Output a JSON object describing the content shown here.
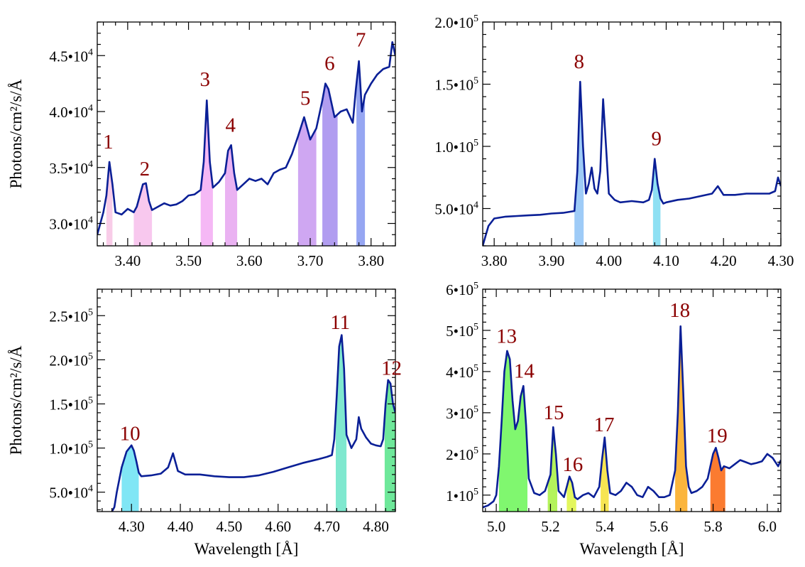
{
  "colors": {
    "spectrum": "#0a1f96",
    "peak_label": "#8b0000",
    "axes": "#000000"
  },
  "chart_data": [
    {
      "type": "line",
      "panel": "top-left",
      "xlim": [
        3.35,
        3.84
      ],
      "ylim": [
        28000,
        48000
      ],
      "xticks": [
        3.4,
        3.5,
        3.6,
        3.7,
        3.8
      ],
      "xtick_labels": [
        "3.40",
        "3.50",
        "3.60",
        "3.70",
        "3.80"
      ],
      "yticks": [
        30000,
        35000,
        40000,
        45000
      ],
      "ytick_labels": [
        [
          "3.0•10",
          "4"
        ],
        [
          "3.5•10",
          "4"
        ],
        [
          "4.0•10",
          "4"
        ],
        [
          "4.5•10",
          "4"
        ]
      ],
      "xlabel": "",
      "ylabel": "Photons/cm²/s/Å",
      "series": [
        {
          "name": "spectrum",
          "x": [
            3.35,
            3.36,
            3.365,
            3.37,
            3.375,
            3.38,
            3.39,
            3.4,
            3.41,
            3.415,
            3.42,
            3.425,
            3.43,
            3.435,
            3.44,
            3.45,
            3.46,
            3.47,
            3.48,
            3.49,
            3.5,
            3.51,
            3.52,
            3.525,
            3.53,
            3.535,
            3.54,
            3.55,
            3.56,
            3.565,
            3.57,
            3.575,
            3.58,
            3.59,
            3.6,
            3.61,
            3.62,
            3.63,
            3.64,
            3.65,
            3.66,
            3.67,
            3.68,
            3.69,
            3.695,
            3.7,
            3.71,
            3.72,
            3.725,
            3.73,
            3.74,
            3.75,
            3.76,
            3.77,
            3.775,
            3.78,
            3.785,
            3.79,
            3.8,
            3.81,
            3.82,
            3.83,
            3.835,
            3.84
          ],
          "y": [
            29000,
            31000,
            32500,
            35500,
            33500,
            31000,
            30800,
            31300,
            31000,
            31500,
            32500,
            33500,
            33600,
            32000,
            31200,
            31500,
            31800,
            31600,
            31700,
            32000,
            32500,
            32600,
            33000,
            35500,
            41000,
            35500,
            33200,
            33700,
            34500,
            36500,
            37000,
            34500,
            33000,
            33500,
            34000,
            33800,
            34000,
            33500,
            34500,
            34800,
            35000,
            36200,
            37800,
            39500,
            38500,
            37500,
            38500,
            41000,
            42500,
            42000,
            39500,
            40000,
            40200,
            39000,
            42000,
            44500,
            40000,
            41500,
            42500,
            43300,
            43800,
            44000,
            46200,
            45000
          ]
        }
      ],
      "shaded_regions": [
        {
          "x": [
            3.365,
            3.375
          ],
          "color": "#f8cce8"
        },
        {
          "x": [
            3.41,
            3.44
          ],
          "color": "#f8c8ee"
        },
        {
          "x": [
            3.52,
            3.54
          ],
          "color": "#f5b8f5"
        },
        {
          "x": [
            3.56,
            3.58
          ],
          "color": "#eab2f2"
        },
        {
          "x": [
            3.68,
            3.71
          ],
          "color": "#cfa7f2"
        },
        {
          "x": [
            3.72,
            3.745
          ],
          "color": "#b19df0"
        },
        {
          "x": [
            3.776,
            3.79
          ],
          "color": "#96a6f2"
        }
      ],
      "annotations": [
        {
          "text": "1",
          "x": 3.368,
          "y": 36700
        },
        {
          "text": "2",
          "x": 3.428,
          "y": 34300
        },
        {
          "text": "3",
          "x": 3.527,
          "y": 42300
        },
        {
          "text": "4",
          "x": 3.569,
          "y": 38200
        },
        {
          "text": "5",
          "x": 3.692,
          "y": 40600
        },
        {
          "text": "6",
          "x": 3.732,
          "y": 43700
        },
        {
          "text": "7",
          "x": 3.783,
          "y": 45800
        }
      ]
    },
    {
      "type": "line",
      "panel": "top-right",
      "xlim": [
        3.78,
        4.3
      ],
      "ylim": [
        20000,
        200000
      ],
      "xticks": [
        3.8,
        3.9,
        4.0,
        4.1,
        4.2,
        4.3
      ],
      "xtick_labels": [
        "3.80",
        "3.90",
        "4.00",
        "4.10",
        "4.20",
        "4.30"
      ],
      "yticks": [
        50000,
        100000,
        150000,
        200000
      ],
      "ytick_labels": [
        [
          "5.0•10",
          "4"
        ],
        [
          "1.0•10",
          "5"
        ],
        [
          "1.5•10",
          "5"
        ],
        [
          "2.0•10",
          "5"
        ]
      ],
      "xlabel": "",
      "ylabel": "",
      "series": [
        {
          "name": "spectrum",
          "x": [
            3.78,
            3.785,
            3.79,
            3.8,
            3.82,
            3.84,
            3.86,
            3.88,
            3.9,
            3.92,
            3.94,
            3.945,
            3.95,
            3.955,
            3.96,
            3.965,
            3.97,
            3.975,
            3.98,
            3.985,
            3.99,
            3.995,
            4.0,
            4.01,
            4.02,
            4.04,
            4.06,
            4.07,
            4.075,
            4.08,
            4.085,
            4.09,
            4.095,
            4.1,
            4.12,
            4.14,
            4.16,
            4.18,
            4.19,
            4.2,
            4.22,
            4.24,
            4.26,
            4.28,
            4.29,
            4.295,
            4.3
          ],
          "y": [
            20000,
            28000,
            36000,
            42000,
            43500,
            44000,
            44500,
            45000,
            46000,
            46500,
            48000,
            80000,
            152000,
            100000,
            62000,
            70000,
            83000,
            66000,
            62000,
            80000,
            138000,
            100000,
            62000,
            57000,
            55000,
            56000,
            55000,
            57000,
            65000,
            90000,
            70000,
            58000,
            54000,
            55000,
            57000,
            58000,
            60000,
            62000,
            68000,
            61000,
            61000,
            62000,
            62000,
            62000,
            64000,
            75000,
            68000
          ]
        }
      ],
      "shaded_regions": [
        {
          "x": [
            3.94,
            3.956
          ],
          "color": "#9ecbf7"
        },
        {
          "x": [
            4.077,
            4.09
          ],
          "color": "#8ee0f3"
        }
      ],
      "annotations": [
        {
          "text": "8",
          "x": 3.948,
          "y": 163000
        },
        {
          "text": "9",
          "x": 4.083,
          "y": 101000
        }
      ]
    },
    {
      "type": "line",
      "panel": "bottom-left",
      "xlim": [
        4.23,
        4.84
      ],
      "ylim": [
        28000,
        280000
      ],
      "xticks": [
        4.3,
        4.4,
        4.5,
        4.6,
        4.7,
        4.8
      ],
      "xtick_labels": [
        "4.30",
        "4.40",
        "4.50",
        "4.60",
        "4.70",
        "4.80"
      ],
      "yticks": [
        50000,
        100000,
        150000,
        200000,
        250000
      ],
      "ytick_labels": [
        [
          "5.0•10",
          "4"
        ],
        [
          "1.0•10",
          "5"
        ],
        [
          "1.5•10",
          "5"
        ],
        [
          "2.0•10",
          "5"
        ],
        [
          "2.5•10",
          "5"
        ]
      ],
      "xlabel": "Wavelength [Å]",
      "ylabel": "Photons/cm²/s/Å",
      "series": [
        {
          "name": "spectrum",
          "x": [
            4.26,
            4.265,
            4.27,
            4.28,
            4.29,
            4.3,
            4.305,
            4.31,
            4.315,
            4.32,
            4.34,
            4.36,
            4.375,
            4.385,
            4.395,
            4.41,
            4.44,
            4.47,
            4.5,
            4.53,
            4.56,
            4.59,
            4.62,
            4.65,
            4.68,
            4.7,
            4.71,
            4.715,
            4.72,
            4.725,
            4.73,
            4.735,
            4.74,
            4.75,
            4.76,
            4.765,
            4.77,
            4.78,
            4.79,
            4.8,
            4.81,
            4.815,
            4.82,
            4.825,
            4.83,
            4.835,
            4.84
          ],
          "y": [
            28000,
            33000,
            50000,
            78000,
            96000,
            103000,
            97000,
            85000,
            72000,
            68000,
            69000,
            71000,
            78000,
            94000,
            74000,
            70000,
            70000,
            68000,
            67000,
            67000,
            69000,
            73000,
            78000,
            83000,
            87000,
            90000,
            92000,
            110000,
            160000,
            215000,
            228000,
            190000,
            115000,
            100000,
            110000,
            135000,
            122000,
            112000,
            105000,
            103000,
            102000,
            110000,
            150000,
            177000,
            173000,
            150000,
            140000
          ]
        }
      ],
      "shaded_regions": [
        {
          "x": [
            4.28,
            4.315
          ],
          "color": "#80e6f5"
        },
        {
          "x": [
            4.718,
            4.74
          ],
          "color": "#7fe8cf"
        },
        {
          "x": [
            4.818,
            4.84
          ],
          "color": "#6ee89a"
        }
      ],
      "annotations": [
        {
          "text": "10",
          "x": 4.297,
          "y": 109000
        },
        {
          "text": "11",
          "x": 4.727,
          "y": 235000
        },
        {
          "text": "12",
          "x": 4.832,
          "y": 183000
        }
      ]
    },
    {
      "type": "line",
      "panel": "bottom-right",
      "xlim": [
        4.95,
        6.05
      ],
      "ylim": [
        60000,
        600000
      ],
      "xticks": [
        5.0,
        5.2,
        5.4,
        5.6,
        5.8,
        6.0
      ],
      "xtick_labels": [
        "5.0",
        "5.2",
        "5.4",
        "5.6",
        "5.8",
        "6.0"
      ],
      "yticks": [
        100000,
        200000,
        300000,
        400000,
        500000,
        600000
      ],
      "ytick_labels": [
        [
          "1•10",
          "5"
        ],
        [
          "2•10",
          "5"
        ],
        [
          "3•10",
          "5"
        ],
        [
          "4•10",
          "5"
        ],
        [
          "5•10",
          "5"
        ],
        [
          "6•10",
          "5"
        ]
      ],
      "xlabel": "Wavelength [Å]",
      "ylabel": "",
      "series": [
        {
          "name": "spectrum",
          "x": [
            4.95,
            4.97,
            4.99,
            5.0,
            5.01,
            5.02,
            5.03,
            5.04,
            5.05,
            5.06,
            5.07,
            5.08,
            5.09,
            5.1,
            5.11,
            5.12,
            5.14,
            5.16,
            5.18,
            5.2,
            5.21,
            5.22,
            5.23,
            5.25,
            5.26,
            5.27,
            5.28,
            5.29,
            5.3,
            5.32,
            5.34,
            5.36,
            5.38,
            5.39,
            5.4,
            5.41,
            5.42,
            5.44,
            5.46,
            5.48,
            5.5,
            5.52,
            5.54,
            5.56,
            5.58,
            5.6,
            5.62,
            5.64,
            5.66,
            5.67,
            5.68,
            5.69,
            5.7,
            5.71,
            5.72,
            5.74,
            5.76,
            5.78,
            5.79,
            5.8,
            5.81,
            5.82,
            5.83,
            5.84,
            5.86,
            5.88,
            5.9,
            5.92,
            5.94,
            5.96,
            5.98,
            6.0,
            6.02,
            6.04,
            6.05
          ],
          "y": [
            70000,
            75000,
            85000,
            100000,
            170000,
            280000,
            400000,
            450000,
            430000,
            330000,
            260000,
            280000,
            340000,
            365000,
            270000,
            140000,
            105000,
            100000,
            110000,
            150000,
            265000,
            200000,
            110000,
            95000,
            120000,
            145000,
            130000,
            95000,
            90000,
            100000,
            105000,
            95000,
            120000,
            185000,
            240000,
            160000,
            105000,
            100000,
            110000,
            130000,
            120000,
            100000,
            95000,
            120000,
            110000,
            95000,
            95000,
            100000,
            160000,
            300000,
            510000,
            350000,
            170000,
            120000,
            105000,
            110000,
            120000,
            140000,
            170000,
            200000,
            215000,
            190000,
            160000,
            170000,
            165000,
            175000,
            185000,
            180000,
            175000,
            178000,
            182000,
            200000,
            190000,
            170000,
            185000
          ]
        }
      ],
      "shaded_regions": [
        {
          "x": [
            5.01,
            5.115
          ],
          "color": "#80f76f"
        },
        {
          "x": [
            5.19,
            5.225
          ],
          "color": "#b4f35b"
        },
        {
          "x": [
            5.26,
            5.295
          ],
          "color": "#e3f65c"
        },
        {
          "x": [
            5.385,
            5.415
          ],
          "color": "#f7e552"
        },
        {
          "x": [
            5.66,
            5.705
          ],
          "color": "#fbb53d"
        },
        {
          "x": [
            5.79,
            5.845
          ],
          "color": "#fb7b30"
        }
      ],
      "annotations": [
        {
          "text": "13",
          "x": 5.038,
          "y": 470000
        },
        {
          "text": "14",
          "x": 5.103,
          "y": 385000
        },
        {
          "text": "15",
          "x": 5.212,
          "y": 284000
        },
        {
          "text": "16",
          "x": 5.282,
          "y": 158000
        },
        {
          "text": "17",
          "x": 5.398,
          "y": 255000
        },
        {
          "text": "18",
          "x": 5.677,
          "y": 533000
        },
        {
          "text": "19",
          "x": 5.815,
          "y": 228000
        }
      ]
    }
  ]
}
